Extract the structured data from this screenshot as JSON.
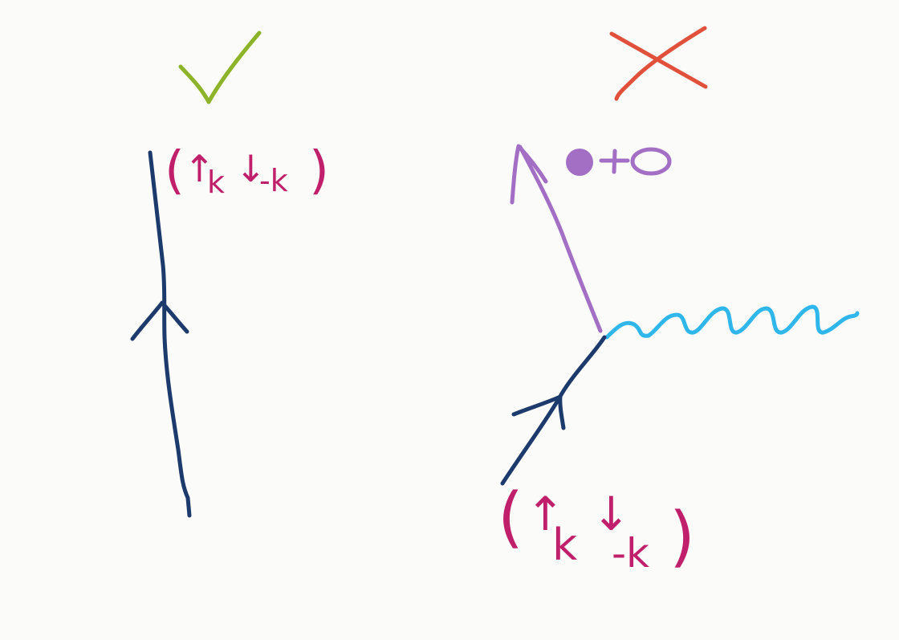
{
  "colors": {
    "background": "#fbfbf9",
    "check": "#8cb32a",
    "cross": "#e0503a",
    "fermion_line": "#1c3a6b",
    "pair_label": "#c0206b",
    "outgoing_particle": "#a36fc4",
    "photon": "#2fb6ea"
  },
  "left_panel": {
    "verdict_icon": "check-mark-icon",
    "pair_label": {
      "open": "(",
      "up": "↑",
      "k1": "k",
      "down": "↓",
      "k2": "-k",
      "close": ")"
    }
  },
  "right_panel": {
    "verdict_icon": "cross-mark-icon",
    "products_label": {
      "filled": "●",
      "plus": "+",
      "empty": "○"
    },
    "pair_label": {
      "open": "(",
      "up": "↑",
      "k1": "k",
      "down": "↓",
      "k2": "-k",
      "close": ")"
    }
  }
}
